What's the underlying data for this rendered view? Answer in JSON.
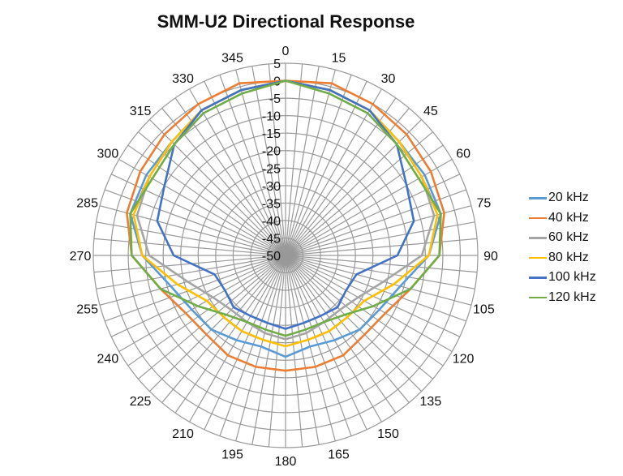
{
  "chart_data": {
    "type": "radar",
    "title": "SMM-U2 Directional Response",
    "angle_ticks": [
      0,
      15,
      30,
      45,
      60,
      75,
      90,
      105,
      120,
      135,
      150,
      165,
      180,
      195,
      210,
      225,
      240,
      255,
      270,
      285,
      300,
      315,
      330,
      345
    ],
    "radial_ticks": [
      5,
      0,
      -5,
      -10,
      -15,
      -20,
      -25,
      -30,
      -35,
      -40,
      -45,
      -50
    ],
    "rlim": [
      -50,
      5
    ],
    "angles": [
      0,
      15,
      30,
      45,
      60,
      75,
      90,
      105,
      120,
      135,
      150,
      165,
      180,
      195,
      210,
      225,
      240,
      255,
      270,
      285,
      300,
      315,
      330,
      345
    ],
    "series": [
      {
        "name": "20 kHz",
        "color": "#5B9BD5",
        "values": [
          0,
          -1,
          -2,
          -4,
          -4,
          -4,
          -9,
          -16,
          -19,
          -20,
          -22,
          -23,
          -21,
          -23,
          -22,
          -20,
          -19,
          -16,
          -9,
          -4,
          -4,
          -4,
          -2,
          -1
        ]
      },
      {
        "name": "40 kHz",
        "color": "#ED7D31",
        "values": [
          0,
          1,
          0,
          -1,
          -2,
          -3,
          -6,
          -13,
          -17,
          -18,
          -17,
          -17,
          -17,
          -17,
          -17,
          -18,
          -17,
          -13,
          -6,
          -3,
          -2,
          -1,
          0,
          1
        ]
      },
      {
        "name": "60 kHz",
        "color": "#A5A5A5",
        "values": [
          0,
          -1,
          -2,
          -4,
          -5,
          -6,
          -11,
          -21,
          -26,
          -28,
          -28,
          -27,
          -26,
          -27,
          -28,
          -28,
          -26,
          -21,
          -11,
          -6,
          -5,
          -4,
          -2,
          -1
        ]
      },
      {
        "name": "80 kHz",
        "color": "#FFC000",
        "values": [
          0,
          -1,
          -2,
          -4,
          -5,
          -5,
          -9,
          -18,
          -24,
          -25,
          -25,
          -25,
          -24,
          -25,
          -25,
          -25,
          -24,
          -18,
          -9,
          -5,
          -5,
          -4,
          -2,
          -1
        ]
      },
      {
        "name": "100 kHz",
        "color": "#4472C4",
        "values": [
          0,
          -1,
          -2,
          -5,
          -10,
          -12,
          -18,
          -29,
          -30,
          -29,
          -30,
          -30,
          -29,
          -30,
          -30,
          -29,
          -30,
          -29,
          -18,
          -12,
          -10,
          -5,
          -2,
          -1
        ]
      },
      {
        "name": "120 kHz",
        "color": "#70AD47",
        "values": [
          0,
          -2,
          -3,
          -5,
          -6,
          -4,
          -6,
          -13,
          -21,
          -26,
          -28,
          -28,
          -27,
          -28,
          -28,
          -26,
          -21,
          -13,
          -6,
          -4,
          -6,
          -5,
          -3,
          -2
        ]
      }
    ]
  }
}
